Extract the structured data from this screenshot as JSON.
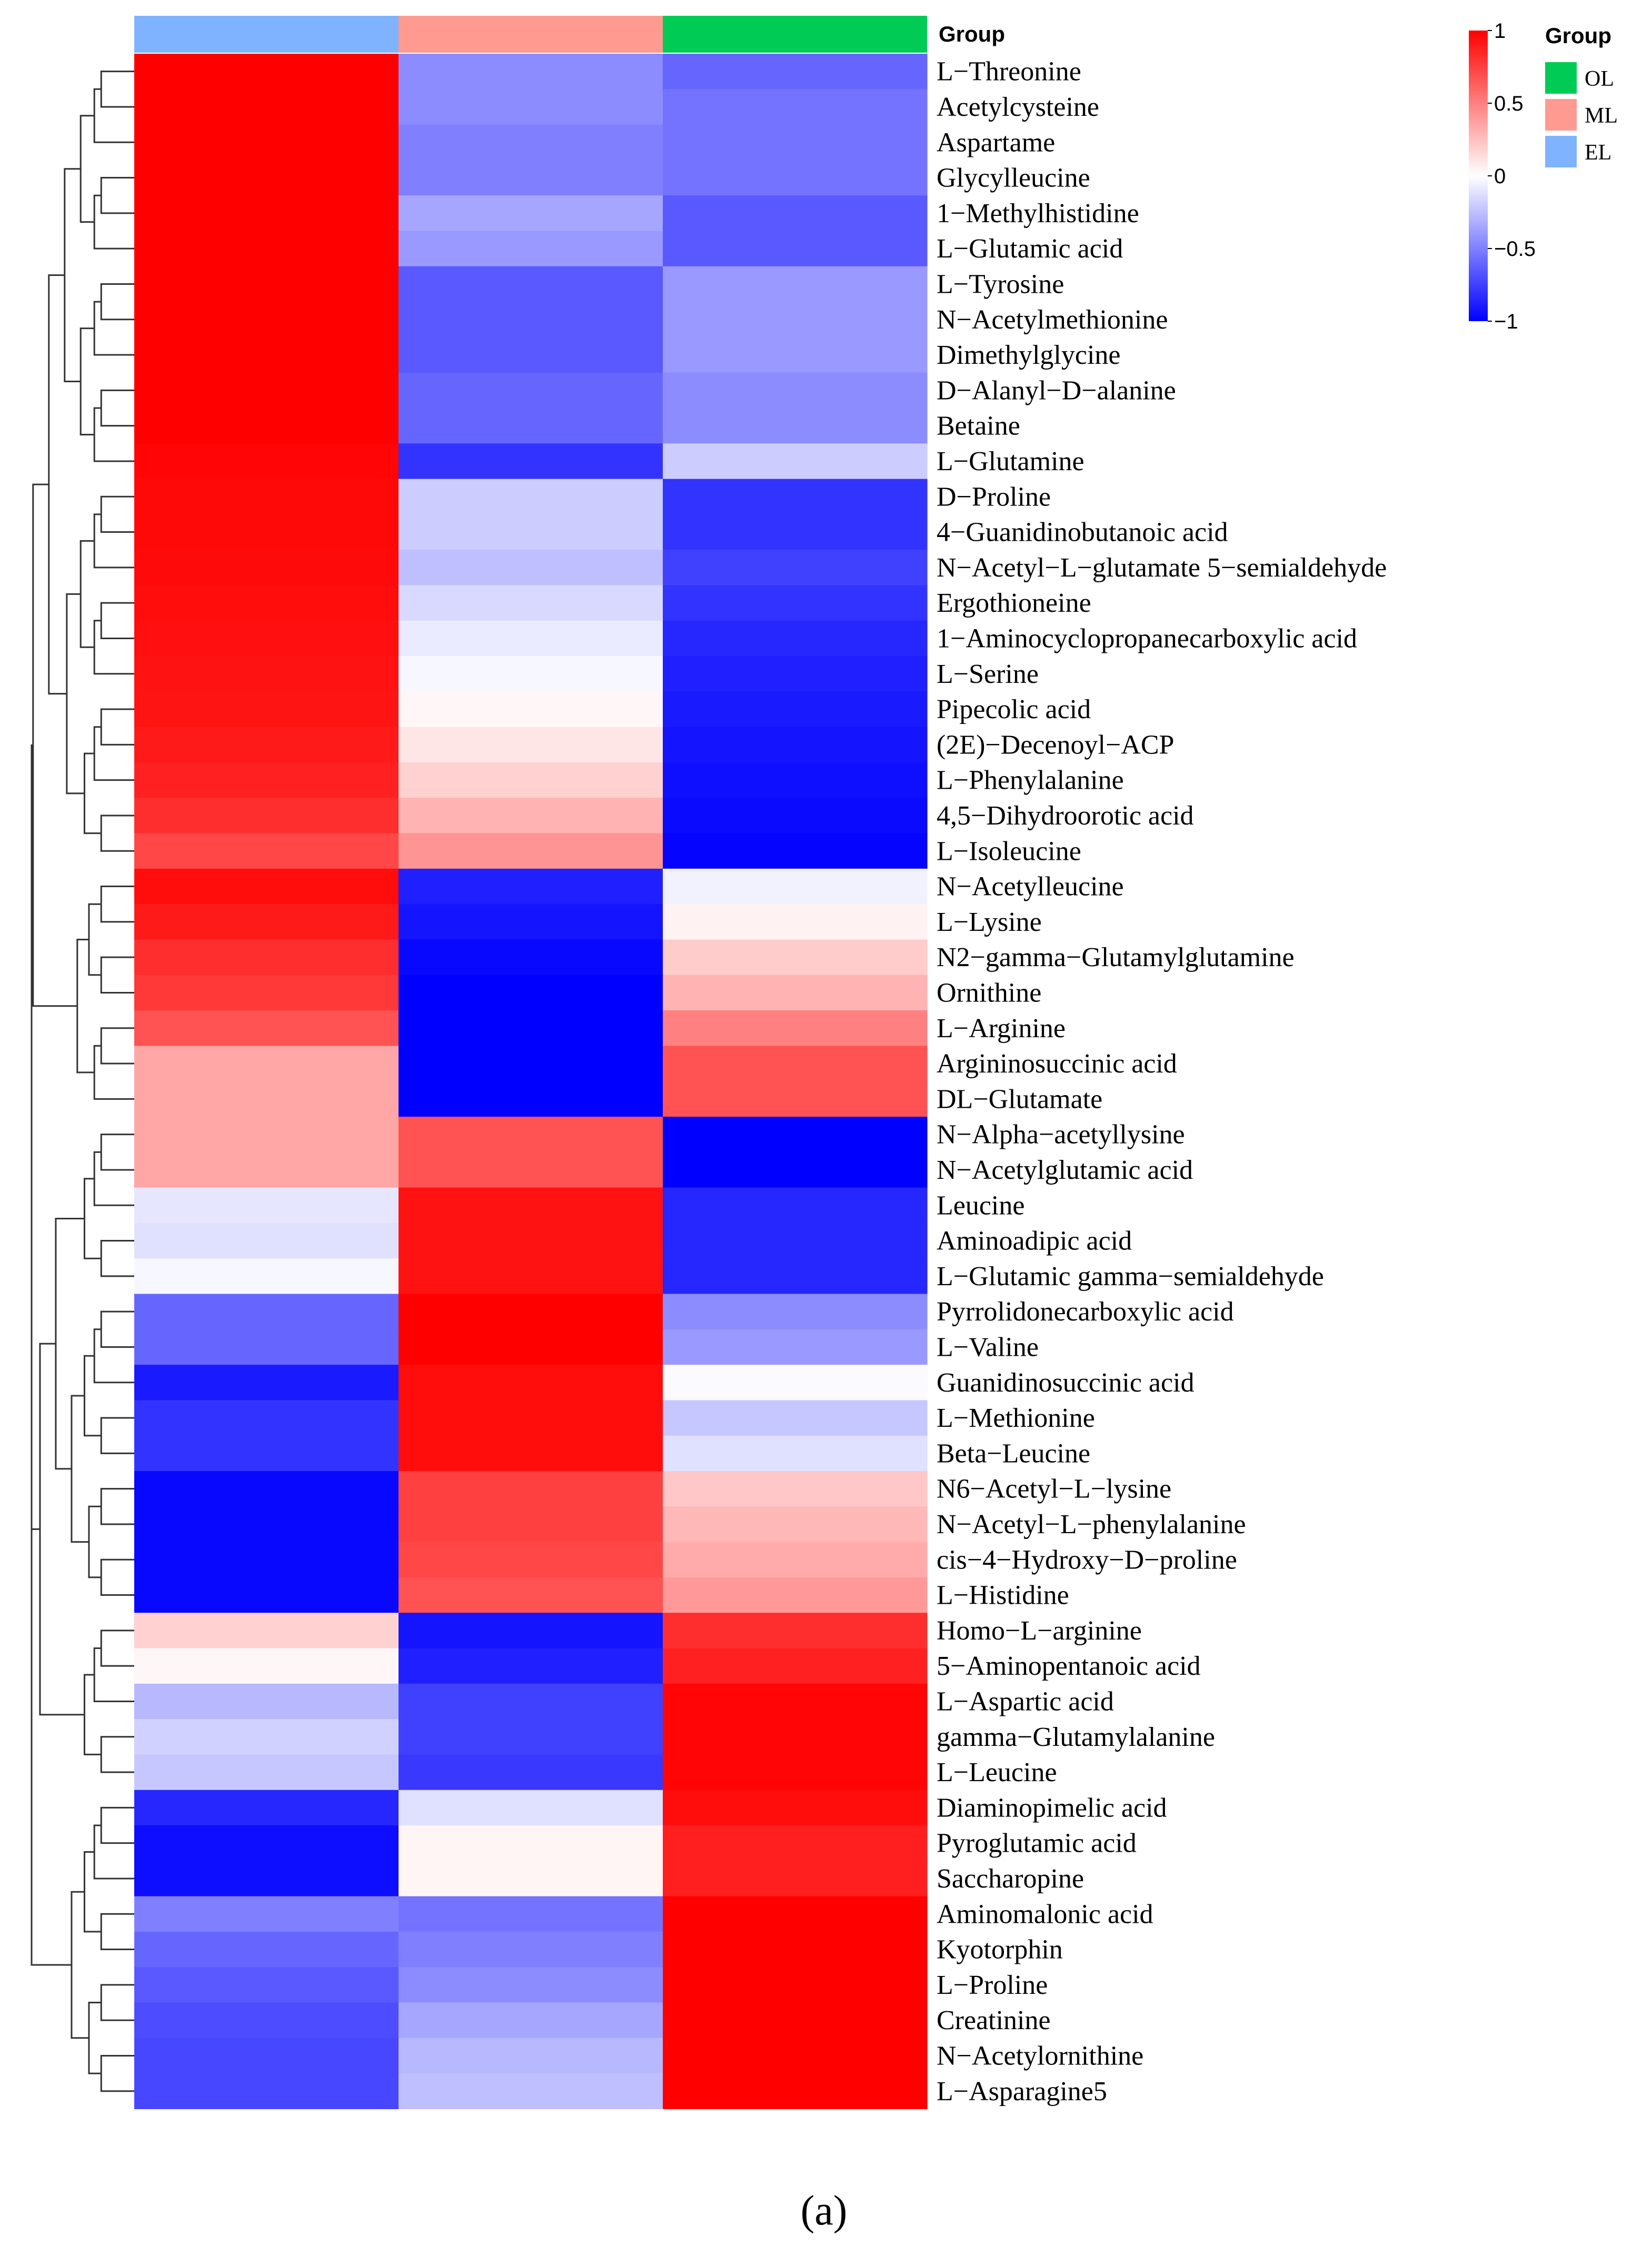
{
  "chart_data": {
    "type": "heatmap",
    "columns": [
      "EL",
      "ML",
      "OL"
    ],
    "column_annotation_title": "Group",
    "column_annotation_colors": {
      "EL": "#80b3ff",
      "ML": "#ff9a91",
      "OL": "#00cc55"
    },
    "legend": {
      "title": "Group",
      "entries": [
        {
          "label": "OL",
          "color": "#00cc55"
        },
        {
          "label": "ML",
          "color": "#ff9a91"
        },
        {
          "label": "EL",
          "color": "#80b3ff"
        }
      ]
    },
    "colorbar": {
      "min": -1,
      "max": 1,
      "ticks": [
        {
          "value": 1,
          "label": "1"
        },
        {
          "value": 0.5,
          "label": "0.5"
        },
        {
          "value": 0,
          "label": "0"
        },
        {
          "value": -0.5,
          "label": "−0.5"
        },
        {
          "value": -1,
          "label": "−1"
        }
      ],
      "colors": {
        "low": "#0000ff",
        "mid": "#ffffff",
        "high": "#ff0000"
      }
    },
    "panel_label": "(a)",
    "rows": [
      {
        "name": "L−Threonine",
        "values": [
          1.0,
          -0.45,
          -0.6
        ]
      },
      {
        "name": "Acetylcysteine",
        "values": [
          1.0,
          -0.45,
          -0.55
        ]
      },
      {
        "name": "Aspartame",
        "values": [
          1.0,
          -0.5,
          -0.55
        ]
      },
      {
        "name": "Glycylleucine",
        "values": [
          1.0,
          -0.5,
          -0.55
        ]
      },
      {
        "name": "1−Methylhistidine",
        "values": [
          1.0,
          -0.35,
          -0.65
        ]
      },
      {
        "name": "L−Glutamic acid",
        "values": [
          1.0,
          -0.4,
          -0.65
        ]
      },
      {
        "name": "L−Tyrosine",
        "values": [
          1.0,
          -0.65,
          -0.4
        ]
      },
      {
        "name": "N−Acetylmethionine",
        "values": [
          1.0,
          -0.65,
          -0.4
        ]
      },
      {
        "name": "Dimethylglycine",
        "values": [
          1.0,
          -0.65,
          -0.4
        ]
      },
      {
        "name": "D−Alanyl−D−alanine",
        "values": [
          1.0,
          -0.6,
          -0.45
        ]
      },
      {
        "name": "Betaine",
        "values": [
          1.0,
          -0.6,
          -0.45
        ]
      },
      {
        "name": "L−Glutamine",
        "values": [
          0.98,
          -0.8,
          -0.2
        ]
      },
      {
        "name": "D−Proline",
        "values": [
          0.97,
          -0.2,
          -0.8
        ]
      },
      {
        "name": "4−Guanidinobutanoic acid",
        "values": [
          0.97,
          -0.2,
          -0.8
        ]
      },
      {
        "name": "N−Acetyl−L−glutamate 5−semialdehyde",
        "values": [
          0.96,
          -0.25,
          -0.75
        ]
      },
      {
        "name": "Ergothioneine",
        "values": [
          0.95,
          -0.15,
          -0.8
        ]
      },
      {
        "name": "1−Aminocyclopropanecarboxylic acid",
        "values": [
          0.94,
          -0.08,
          -0.85
        ]
      },
      {
        "name": "L−Serine",
        "values": [
          0.93,
          -0.03,
          -0.88
        ]
      },
      {
        "name": "Pipecolic acid",
        "values": [
          0.92,
          0.03,
          -0.9
        ]
      },
      {
        "name": "(2E)−Decenoyl−ACP",
        "values": [
          0.9,
          0.1,
          -0.92
        ]
      },
      {
        "name": "L−Phenylalanine",
        "values": [
          0.87,
          0.18,
          -0.94
        ]
      },
      {
        "name": "4,5−Dihydroorotic acid",
        "values": [
          0.82,
          0.3,
          -0.96
        ]
      },
      {
        "name": "L−Isoleucine",
        "values": [
          0.72,
          0.42,
          -0.98
        ]
      },
      {
        "name": "N−Acetylleucine",
        "values": [
          0.95,
          -0.88,
          -0.05
        ]
      },
      {
        "name": "L−Lysine",
        "values": [
          0.9,
          -0.92,
          0.05
        ]
      },
      {
        "name": "N2−gamma−Glutamylglutamine",
        "values": [
          0.82,
          -0.97,
          0.2
        ]
      },
      {
        "name": "Ornithine",
        "values": [
          0.78,
          -1.0,
          0.3
        ]
      },
      {
        "name": "L−Arginine",
        "values": [
          0.68,
          -1.0,
          0.5
        ]
      },
      {
        "name": "Argininosuccinic acid",
        "values": [
          0.35,
          -1.0,
          0.68
        ]
      },
      {
        "name": "DL−Glutamate",
        "values": [
          0.35,
          -1.0,
          0.68
        ]
      },
      {
        "name": "N−Alpha−acetyllysine",
        "values": [
          0.35,
          0.68,
          -1.0
        ]
      },
      {
        "name": "N−Acetylglutamic acid",
        "values": [
          0.35,
          0.68,
          -1.0
        ]
      },
      {
        "name": "Leucine",
        "values": [
          -0.1,
          0.93,
          -0.85
        ]
      },
      {
        "name": "Aminoadipic acid",
        "values": [
          -0.12,
          0.93,
          -0.85
        ]
      },
      {
        "name": "L−Glutamic gamma−semialdehyde",
        "values": [
          -0.03,
          0.93,
          -0.85
        ]
      },
      {
        "name": "Pyrrolidonecarboxylic acid",
        "values": [
          -0.6,
          1.0,
          -0.45
        ]
      },
      {
        "name": "L−Valine",
        "values": [
          -0.6,
          1.0,
          -0.4
        ]
      },
      {
        "name": "Guanidinosuccinic acid",
        "values": [
          -0.9,
          0.95,
          -0.02
        ]
      },
      {
        "name": "L−Methionine",
        "values": [
          -0.8,
          0.95,
          -0.22
        ]
      },
      {
        "name": "Beta−Leucine",
        "values": [
          -0.8,
          0.95,
          -0.12
        ]
      },
      {
        "name": "N6−Acetyl−L−lysine",
        "values": [
          -0.97,
          0.75,
          0.22
        ]
      },
      {
        "name": "N−Acetyl−L−phenylalanine",
        "values": [
          -0.97,
          0.75,
          0.28
        ]
      },
      {
        "name": "cis−4−Hydroxy−D−proline",
        "values": [
          -0.97,
          0.72,
          0.33
        ]
      },
      {
        "name": "L−Histidine",
        "values": [
          -0.97,
          0.68,
          0.4
        ]
      },
      {
        "name": "Homo−L−arginine",
        "values": [
          0.18,
          -0.92,
          0.82
        ]
      },
      {
        "name": "5−Aminopentanoic acid",
        "values": [
          0.03,
          -0.88,
          0.87
        ]
      },
      {
        "name": "L−Aspartic acid",
        "values": [
          -0.28,
          -0.75,
          0.98
        ]
      },
      {
        "name": "gamma−Glutamylalanine",
        "values": [
          -0.18,
          -0.75,
          0.98
        ]
      },
      {
        "name": "L−Leucine",
        "values": [
          -0.22,
          -0.78,
          0.98
        ]
      },
      {
        "name": "Diaminopimelic acid",
        "values": [
          -0.85,
          -0.12,
          0.95
        ]
      },
      {
        "name": "Pyroglutamic acid",
        "values": [
          -0.95,
          0.04,
          0.88
        ]
      },
      {
        "name": "Saccharopine",
        "values": [
          -0.95,
          0.04,
          0.88
        ]
      },
      {
        "name": "Aminomalonic acid",
        "values": [
          -0.5,
          -0.55,
          1.0
        ]
      },
      {
        "name": "Kyotorphin",
        "values": [
          -0.6,
          -0.5,
          1.0
        ]
      },
      {
        "name": "L−Proline",
        "values": [
          -0.65,
          -0.45,
          1.0
        ]
      },
      {
        "name": "Creatinine",
        "values": [
          -0.7,
          -0.35,
          1.0
        ]
      },
      {
        "name": "N−Acetylornithine",
        "values": [
          -0.72,
          -0.28,
          1.0
        ]
      },
      {
        "name": "L−Asparagine5",
        "values": [
          -0.72,
          -0.25,
          1.0
        ]
      }
    ]
  }
}
